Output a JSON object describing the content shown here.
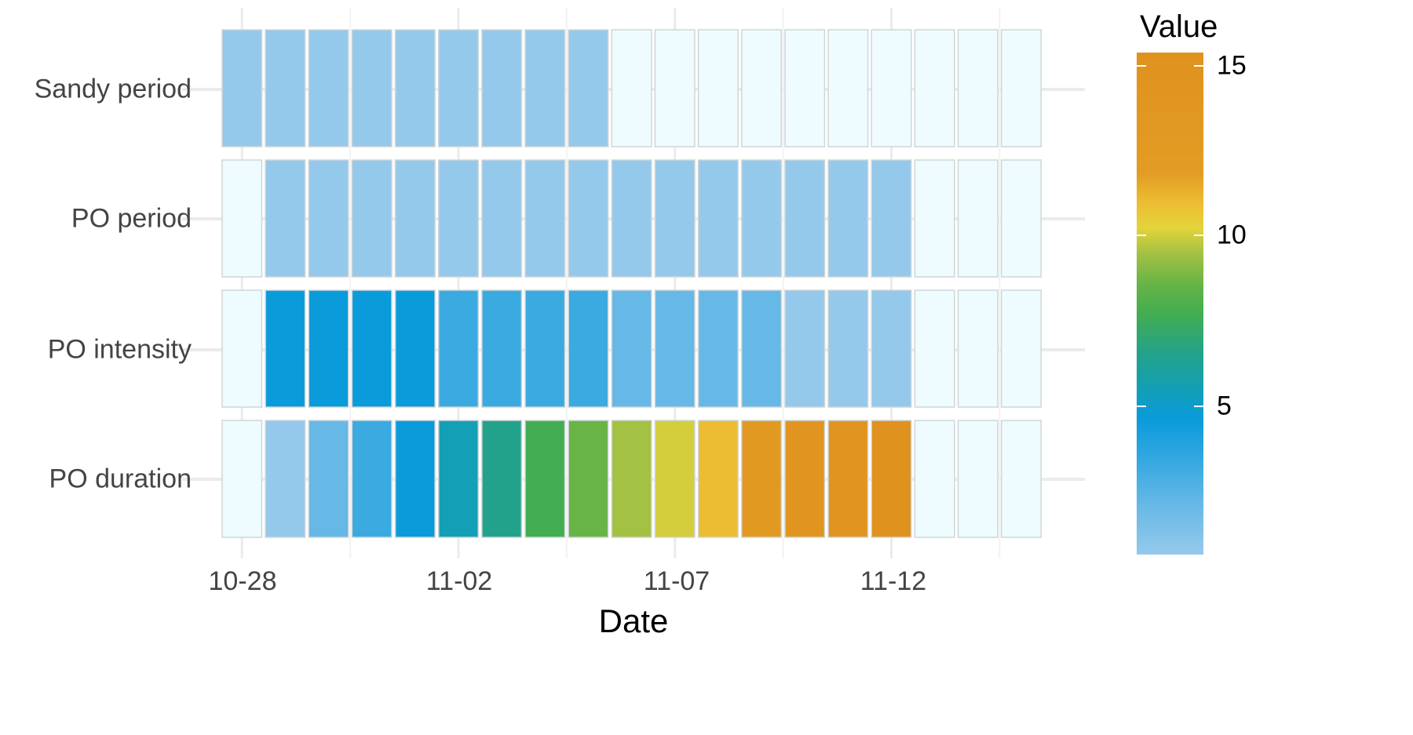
{
  "chart_data": {
    "type": "heatmap",
    "title": "",
    "xlabel": "Date",
    "ylabel": "",
    "x": [
      "10-28",
      "10-29",
      "10-30",
      "10-31",
      "11-01",
      "11-02",
      "11-03",
      "11-04",
      "11-05",
      "11-06",
      "11-07",
      "11-08",
      "11-09",
      "11-10",
      "11-11",
      "11-12",
      "11-13",
      "11-14",
      "11-15"
    ],
    "x_tick_labels": [
      "10-28",
      "11-02",
      "11-07",
      "11-12"
    ],
    "y": [
      "Sandy period",
      "PO period",
      "PO intensity",
      "PO duration"
    ],
    "values": [
      [
        1,
        1,
        1,
        1,
        1,
        1,
        1,
        1,
        1,
        null,
        null,
        null,
        null,
        null,
        null,
        null,
        null,
        null,
        null
      ],
      [
        null,
        1,
        1,
        1,
        1,
        1,
        1,
        1,
        1,
        1,
        1,
        1,
        1,
        1,
        1,
        1,
        null,
        null,
        null
      ],
      [
        null,
        4,
        4,
        4,
        4,
        3,
        3,
        3,
        3,
        2,
        2,
        2,
        2,
        1,
        1,
        1,
        null,
        null,
        null
      ],
      [
        null,
        1,
        2,
        3,
        4,
        5,
        6,
        7,
        8,
        9,
        10,
        11,
        13,
        14,
        14,
        15,
        null,
        null,
        null
      ]
    ],
    "colorbar": {
      "title": "Value",
      "ticks": [
        5,
        10,
        15
      ],
      "range": [
        1,
        15
      ],
      "colors": [
        "#95c9ec",
        "#66b8e6",
        "#0a9bdb",
        "#23a28b",
        "#43ad52",
        "#a3c143",
        "#e3d43a",
        "#e0921e"
      ]
    },
    "na_color": "#effcff",
    "grid": true,
    "legend_position": "right"
  },
  "axis": {
    "x_title": "Date",
    "x_ticks": [
      {
        "label": "10-28",
        "col": 0
      },
      {
        "label": "11-02",
        "col": 5
      },
      {
        "label": "11-07",
        "col": 10
      },
      {
        "label": "11-12",
        "col": 15
      }
    ],
    "y_ticks": [
      "Sandy period",
      "PO period",
      "PO intensity",
      "PO duration"
    ]
  },
  "legend": {
    "title": "Value",
    "labels": [
      {
        "text": "15",
        "y": 84
      },
      {
        "text": "10",
        "y": 300
      },
      {
        "text": "5",
        "y": 518
      }
    ]
  }
}
